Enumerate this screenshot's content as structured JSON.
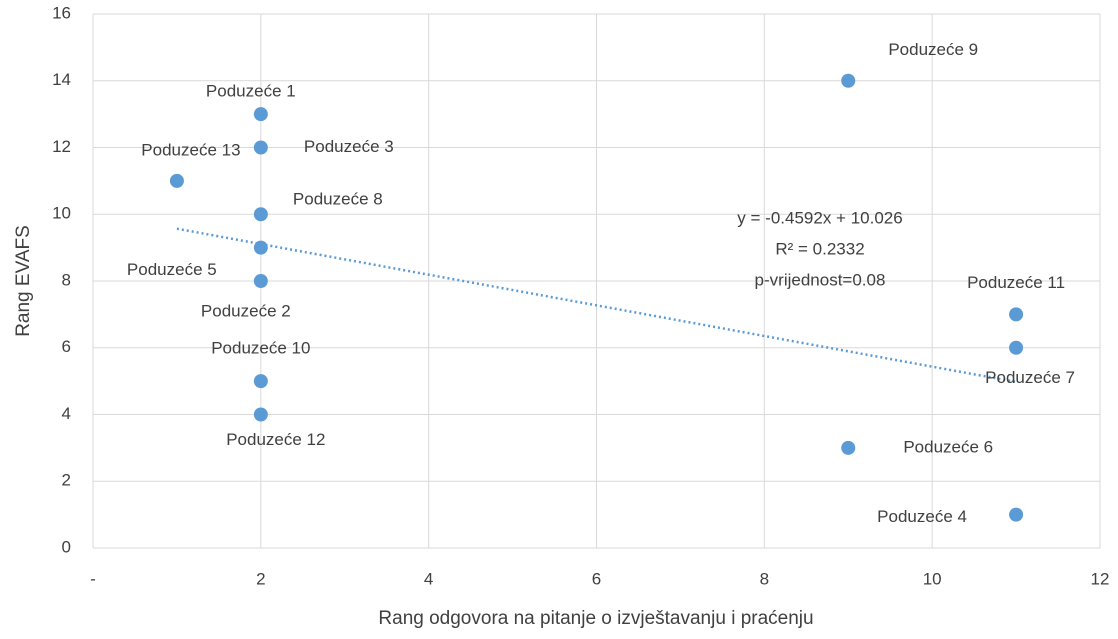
{
  "chart_data": {
    "type": "scatter",
    "xlabel": "Rang odgovora na pitanje o izvještavanju i praćenju",
    "ylabel": "Rang EVAFS",
    "labels": [
      "Poduzeće 1",
      "Poduzeće 2",
      "Poduzeće 3",
      "Poduzeće 4",
      "Poduzeće 5",
      "Poduzeće 6",
      "Poduzeće 7",
      "Poduzeće 8",
      "Poduzeće 9",
      "Poduzeće 10",
      "Poduzeće 11",
      "Poduzeće 12",
      "Poduzeće 13"
    ],
    "x": [
      2,
      2,
      2,
      11,
      2,
      9,
      11,
      2,
      9,
      2,
      11,
      2,
      1
    ],
    "values": [
      13,
      8,
      12,
      1,
      9,
      3,
      6,
      10,
      14,
      5,
      7,
      4,
      11
    ],
    "color": "#5b9bd5",
    "xlim": [
      0,
      12
    ],
    "xticks": [
      {
        "value": 0,
        "label": "-"
      },
      2,
      4,
      6,
      8,
      10,
      12
    ],
    "ylim": [
      0,
      16
    ],
    "yticks": [
      0,
      2,
      4,
      6,
      8,
      10,
      12,
      14,
      16
    ],
    "grid": true,
    "trendline": {
      "slope": -0.4592,
      "intercept": 10.026,
      "x": [
        1,
        11
      ],
      "style": "dotted"
    },
    "annotations": [
      "y = -0.4592x + 10.026",
      "R² = 0.2332",
      "p-vrijednost=0.08"
    ]
  }
}
